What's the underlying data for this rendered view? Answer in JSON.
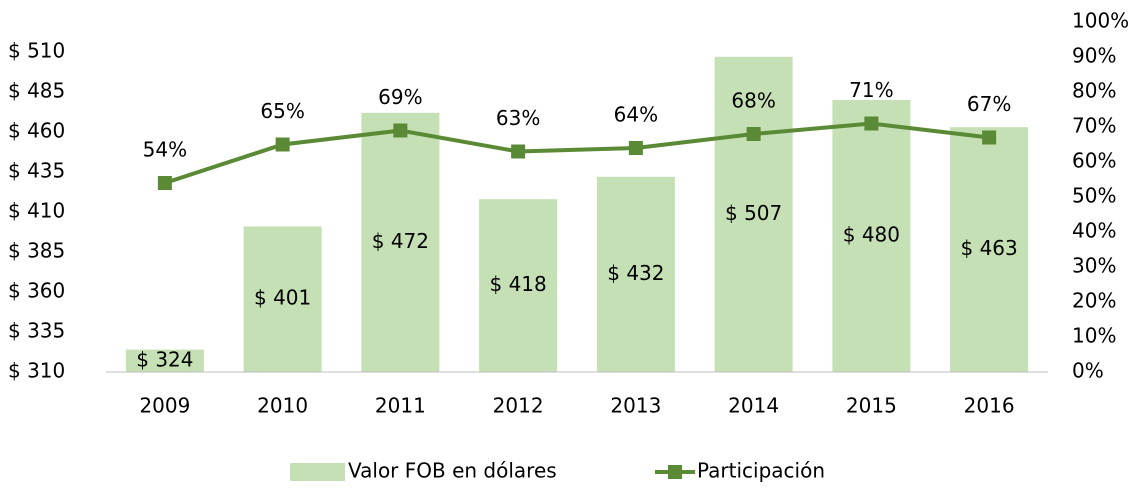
{
  "chart_data": {
    "type": "bar-line",
    "categories": [
      "2009",
      "2010",
      "2011",
      "2012",
      "2013",
      "2014",
      "2015",
      "2016"
    ],
    "series": [
      {
        "name": "Valor FOB en dólares",
        "type": "bar",
        "color": "#c5e0b4",
        "values": [
          324,
          401,
          472,
          418,
          432,
          507,
          480,
          463
        ],
        "value_labels": [
          "$ 324",
          "$ 401",
          "$ 472",
          "$ 418",
          "$ 432",
          "$ 507",
          "$ 480",
          "$ 463"
        ]
      },
      {
        "name": "Participación",
        "type": "line",
        "axis": "y2",
        "color": "#5a8a35",
        "values": [
          54,
          65,
          69,
          63,
          64,
          68,
          71,
          67
        ],
        "value_labels": [
          "54%",
          "65%",
          "69%",
          "63%",
          "64%",
          "68%",
          "71%",
          "67%"
        ]
      }
    ],
    "ylim": [
      310,
      528.75
    ],
    "yticks": [
      {
        "value": 310,
        "label": "$ 310"
      },
      {
        "value": 335,
        "label": "$ 335"
      },
      {
        "value": 360,
        "label": "$ 360"
      },
      {
        "value": 385,
        "label": "$ 385"
      },
      {
        "value": 410,
        "label": "$ 410"
      },
      {
        "value": 435,
        "label": "$ 435"
      },
      {
        "value": 460,
        "label": "$ 460"
      },
      {
        "value": 485,
        "label": "$ 485"
      },
      {
        "value": 510,
        "label": "$ 510"
      }
    ],
    "y2lim": [
      0,
      100
    ],
    "y2ticks": [
      {
        "value": 0,
        "label": "0%"
      },
      {
        "value": 10,
        "label": "10%"
      },
      {
        "value": 20,
        "label": "20%"
      },
      {
        "value": 30,
        "label": "30%"
      },
      {
        "value": 40,
        "label": "40%"
      },
      {
        "value": 50,
        "label": "50%"
      },
      {
        "value": 60,
        "label": "60%"
      },
      {
        "value": 70,
        "label": "70%"
      },
      {
        "value": 80,
        "label": "80%"
      },
      {
        "value": 90,
        "label": "90%"
      },
      {
        "value": 100,
        "label": "100%"
      }
    ],
    "legend": "bottom"
  }
}
